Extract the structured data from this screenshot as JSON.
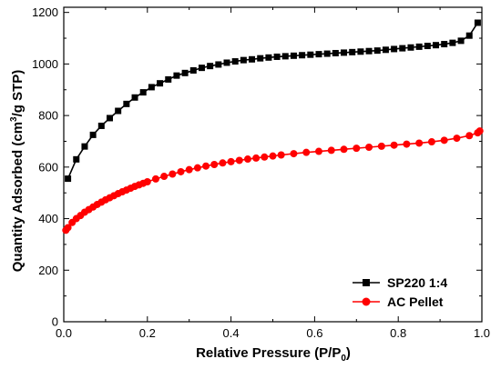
{
  "chart_data": {
    "type": "line",
    "xlabel": "Relative Pressure (P/P0)",
    "xlabel_parts": {
      "main": "Relative Pressure (P/P",
      "sub": "0",
      "end": ")"
    },
    "ylabel": "Quantity Adsorbed (cm3/g STP)",
    "ylabel_parts": {
      "main": "Quantity Adsorbed (cm",
      "sup": "3",
      "end": "/g STP)"
    },
    "xlim": [
      0.0,
      1.0
    ],
    "ylim": [
      0,
      1220
    ],
    "x_ticks": [
      0.0,
      0.2,
      0.4,
      0.6,
      0.8,
      1.0
    ],
    "x_tick_labels": [
      "0.0",
      "0.2",
      "0.4",
      "0.6",
      "0.8",
      "1.0"
    ],
    "y_ticks": [
      0,
      200,
      400,
      600,
      800,
      1000,
      1200
    ],
    "y_tick_labels": [
      "0",
      "200",
      "400",
      "600",
      "800",
      "1000",
      "1200"
    ],
    "grid": false,
    "legend_position": "bottom-right",
    "series": [
      {
        "name": "SP220 1:4",
        "color": "#000000",
        "marker": "square",
        "x": [
          0.01,
          0.03,
          0.05,
          0.07,
          0.09,
          0.11,
          0.13,
          0.15,
          0.17,
          0.19,
          0.21,
          0.23,
          0.25,
          0.27,
          0.29,
          0.31,
          0.33,
          0.35,
          0.37,
          0.39,
          0.41,
          0.43,
          0.45,
          0.47,
          0.49,
          0.51,
          0.53,
          0.55,
          0.57,
          0.59,
          0.61,
          0.63,
          0.65,
          0.67,
          0.69,
          0.71,
          0.73,
          0.75,
          0.77,
          0.79,
          0.81,
          0.83,
          0.85,
          0.87,
          0.89,
          0.91,
          0.93,
          0.95,
          0.97,
          0.99
        ],
        "values": [
          555,
          630,
          680,
          725,
          760,
          790,
          818,
          845,
          870,
          890,
          910,
          925,
          940,
          955,
          965,
          975,
          985,
          992,
          998,
          1005,
          1010,
          1015,
          1018,
          1022,
          1025,
          1028,
          1030,
          1032,
          1034,
          1036,
          1038,
          1040,
          1042,
          1044,
          1046,
          1048,
          1050,
          1052,
          1055,
          1058,
          1061,
          1064,
          1067,
          1070,
          1073,
          1077,
          1082,
          1090,
          1110,
          1160
        ]
      },
      {
        "name": "AC Pellet",
        "color": "#ff0000",
        "marker": "circle",
        "x": [
          0.005,
          0.01,
          0.02,
          0.03,
          0.04,
          0.05,
          0.06,
          0.07,
          0.08,
          0.09,
          0.1,
          0.11,
          0.12,
          0.13,
          0.14,
          0.15,
          0.16,
          0.17,
          0.18,
          0.19,
          0.2,
          0.22,
          0.24,
          0.26,
          0.28,
          0.3,
          0.32,
          0.34,
          0.36,
          0.38,
          0.4,
          0.42,
          0.44,
          0.46,
          0.48,
          0.5,
          0.52,
          0.55,
          0.58,
          0.61,
          0.64,
          0.67,
          0.7,
          0.73,
          0.76,
          0.79,
          0.82,
          0.85,
          0.88,
          0.91,
          0.94,
          0.97,
          0.99,
          0.995
        ],
        "values": [
          355,
          365,
          385,
          400,
          412,
          425,
          435,
          445,
          455,
          464,
          473,
          481,
          489,
          497,
          504,
          511,
          518,
          525,
          531,
          537,
          543,
          554,
          564,
          573,
          582,
          590,
          597,
          604,
          610,
          616,
          621,
          626,
          631,
          635,
          639,
          643,
          647,
          652,
          657,
          661,
          665,
          669,
          673,
          677,
          681,
          685,
          689,
          693,
          698,
          704,
          712,
          722,
          733,
          740
        ]
      }
    ]
  }
}
